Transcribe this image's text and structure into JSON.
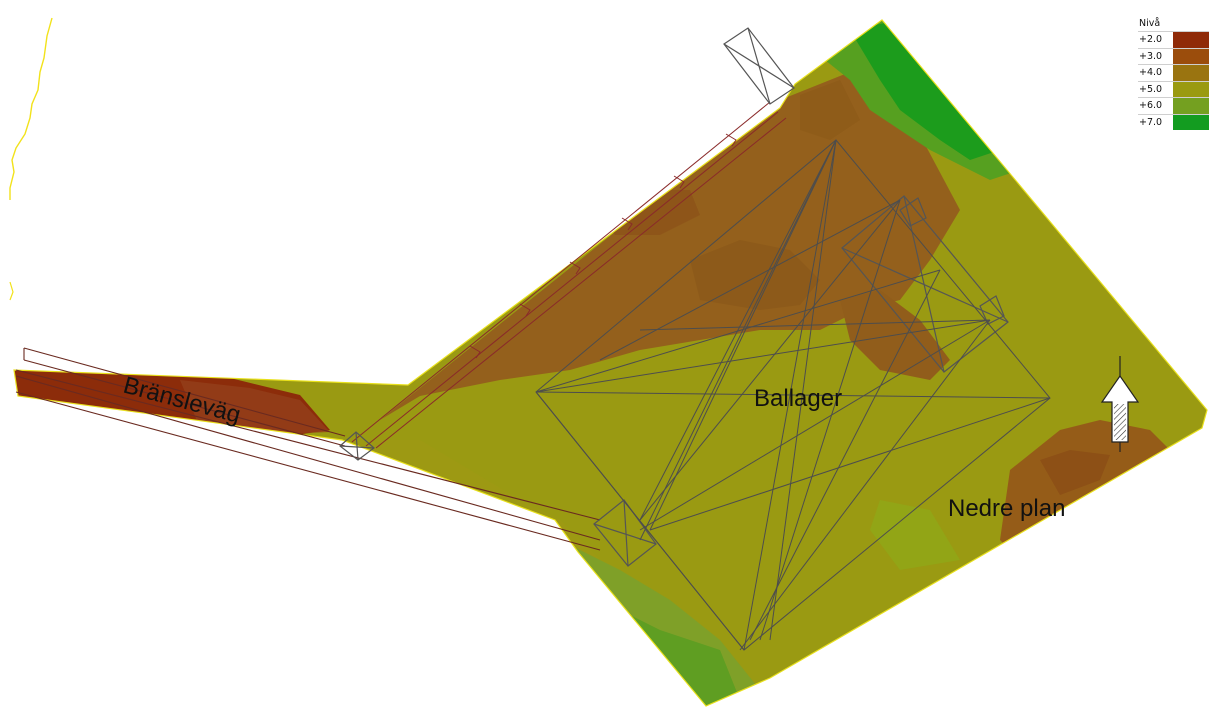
{
  "labels": {
    "fuel_road": "Bränsleväg",
    "ball_storage": "Ballager",
    "lower_level": "Nedre plan"
  },
  "legend": {
    "title": "Nivå",
    "items": [
      {
        "value": "+2.0",
        "color": "#8f2a08"
      },
      {
        "value": "+3.0",
        "color": "#9b4d0c"
      },
      {
        "value": "+4.0",
        "color": "#9a7410"
      },
      {
        "value": "+5.0",
        "color": "#9a9a10"
      },
      {
        "value": "+6.0",
        "color": "#74a020"
      },
      {
        "value": "+7.0",
        "color": "#139c20"
      }
    ]
  },
  "icons": {
    "north_arrow": "north-arrow-icon"
  }
}
